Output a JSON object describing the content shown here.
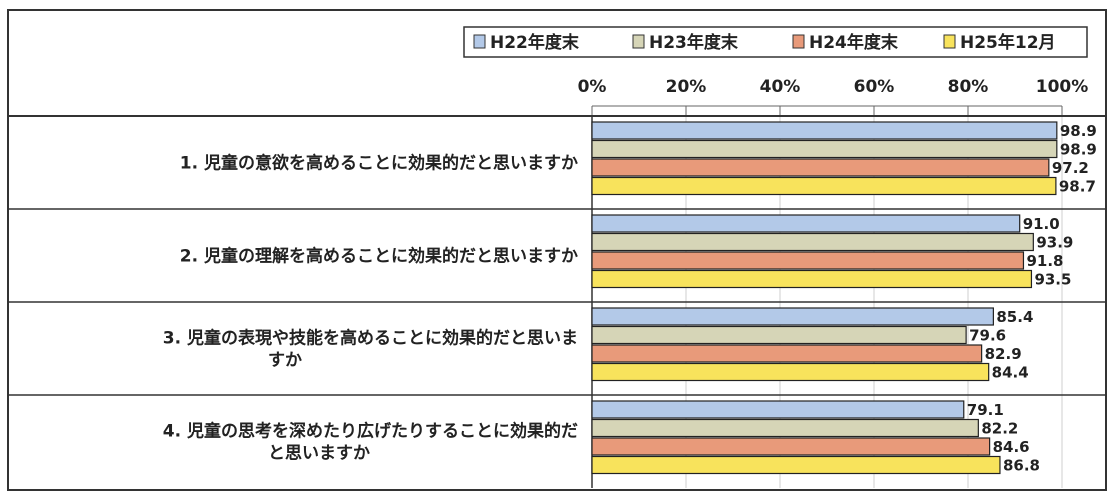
{
  "chart_data": {
    "type": "bar",
    "orientation": "horizontal",
    "categories": [
      [
        "1.  児童の意欲を高めることに効果的だと思いますか"
      ],
      [
        "2.  児童の理解を高めることに効果的だと思いますか"
      ],
      [
        "3.  児童の表現や技能を高めることに効果的だと思いま",
        "すか"
      ],
      [
        "4.  児童の思考を深めたり広げたりすることに効果的だ",
        "と思いますか"
      ]
    ],
    "series": [
      {
        "name": "H22年度末",
        "color": "#b3c9e8",
        "values": [
          98.9,
          91.0,
          85.4,
          79.1
        ]
      },
      {
        "name": "H23年度末",
        "color": "#d6d5b7",
        "values": [
          98.9,
          93.9,
          79.6,
          82.2
        ]
      },
      {
        "name": "H24年度末",
        "color": "#e89a7a",
        "values": [
          97.2,
          91.8,
          82.9,
          84.6
        ]
      },
      {
        "name": "H25年12月",
        "color": "#f8e35c",
        "values": [
          98.7,
          93.5,
          84.4,
          86.8
        ]
      }
    ],
    "xlim": [
      0,
      100
    ],
    "xticks": [
      "0%",
      "20%",
      "40%",
      "60%",
      "80%",
      "100%"
    ],
    "grid": true,
    "legend": "top-right"
  }
}
